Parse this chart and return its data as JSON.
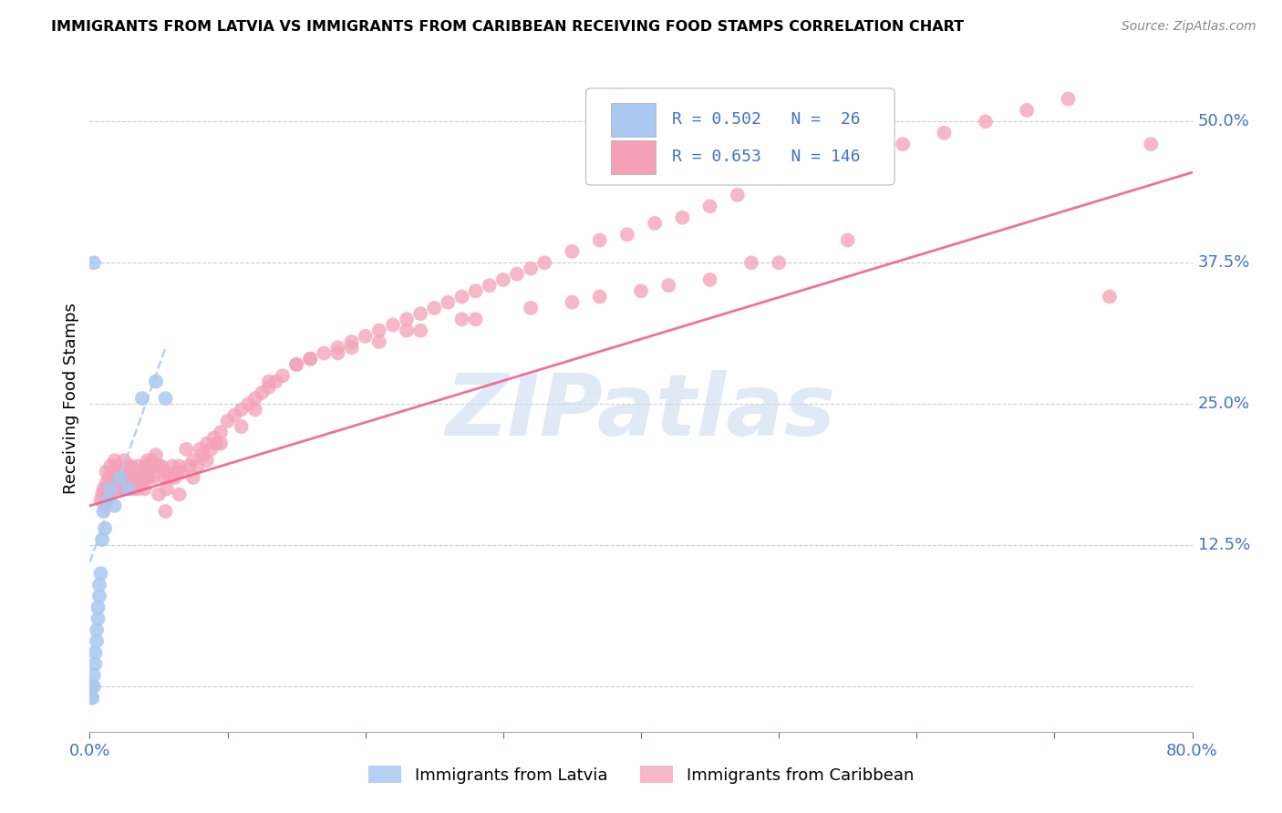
{
  "title": "IMMIGRANTS FROM LATVIA VS IMMIGRANTS FROM CARIBBEAN RECEIVING FOOD STAMPS CORRELATION CHART",
  "source": "Source: ZipAtlas.com",
  "ylabel": "Receiving Food Stamps",
  "xlim": [
    0.0,
    0.8
  ],
  "ylim": [
    -0.04,
    0.55
  ],
  "ytick_vals": [
    0.0,
    0.125,
    0.25,
    0.375,
    0.5
  ],
  "ytick_labels": [
    "",
    "12.5%",
    "25.0%",
    "37.5%",
    "50.0%"
  ],
  "xtick_vals": [
    0.0,
    0.1,
    0.2,
    0.3,
    0.4,
    0.5,
    0.6,
    0.7,
    0.8
  ],
  "xtick_labels": [
    "0.0%",
    "",
    "",
    "",
    "",
    "",
    "",
    "",
    "80.0%"
  ],
  "latvia_color": "#a8c8f0",
  "caribbean_color": "#f4a0b8",
  "latvia_line_color": "#8ab0e0",
  "caribbean_line_color": "#f06090",
  "axis_label_color": "#4472c4",
  "watermark": "ZIPatlas",
  "watermark_color": "#c8d8f0",
  "latvia_R": 0.502,
  "latvia_N": 26,
  "caribbean_R": 0.653,
  "caribbean_N": 146,
  "lv_x": [
    0.001,
    0.002,
    0.002,
    0.003,
    0.003,
    0.004,
    0.004,
    0.005,
    0.005,
    0.006,
    0.006,
    0.007,
    0.007,
    0.008,
    0.009,
    0.01,
    0.011,
    0.013,
    0.015,
    0.018,
    0.022,
    0.028,
    0.038,
    0.048,
    0.055,
    0.003
  ],
  "lv_y": [
    -0.01,
    -0.01,
    0.0,
    0.0,
    0.01,
    0.02,
    0.03,
    0.04,
    0.05,
    0.06,
    0.07,
    0.08,
    0.09,
    0.1,
    0.13,
    0.155,
    0.14,
    0.165,
    0.175,
    0.16,
    0.185,
    0.175,
    0.255,
    0.27,
    0.255,
    0.375
  ],
  "car_x": [
    0.008,
    0.009,
    0.01,
    0.011,
    0.012,
    0.012,
    0.013,
    0.013,
    0.014,
    0.015,
    0.015,
    0.016,
    0.017,
    0.018,
    0.018,
    0.019,
    0.02,
    0.02,
    0.021,
    0.022,
    0.022,
    0.023,
    0.024,
    0.025,
    0.025,
    0.026,
    0.027,
    0.028,
    0.028,
    0.029,
    0.03,
    0.03,
    0.031,
    0.032,
    0.033,
    0.034,
    0.035,
    0.035,
    0.036,
    0.037,
    0.038,
    0.039,
    0.04,
    0.04,
    0.041,
    0.042,
    0.043,
    0.044,
    0.045,
    0.046,
    0.047,
    0.048,
    0.05,
    0.05,
    0.052,
    0.054,
    0.055,
    0.056,
    0.058,
    0.06,
    0.062,
    0.064,
    0.065,
    0.067,
    0.07,
    0.072,
    0.075,
    0.078,
    0.08,
    0.082,
    0.085,
    0.088,
    0.09,
    0.092,
    0.095,
    0.1,
    0.105,
    0.11,
    0.115,
    0.12,
    0.125,
    0.13,
    0.135,
    0.14,
    0.15,
    0.16,
    0.17,
    0.18,
    0.19,
    0.2,
    0.21,
    0.22,
    0.23,
    0.24,
    0.25,
    0.26,
    0.27,
    0.28,
    0.29,
    0.3,
    0.31,
    0.32,
    0.33,
    0.35,
    0.37,
    0.39,
    0.41,
    0.43,
    0.45,
    0.47,
    0.5,
    0.53,
    0.56,
    0.59,
    0.62,
    0.65,
    0.68,
    0.71,
    0.74,
    0.77,
    0.12,
    0.15,
    0.18,
    0.21,
    0.24,
    0.28,
    0.35,
    0.4,
    0.45,
    0.5,
    0.055,
    0.065,
    0.075,
    0.085,
    0.095,
    0.11,
    0.13,
    0.16,
    0.19,
    0.23,
    0.27,
    0.32,
    0.37,
    0.42,
    0.48,
    0.55
  ],
  "car_y": [
    0.165,
    0.17,
    0.175,
    0.16,
    0.18,
    0.19,
    0.165,
    0.175,
    0.185,
    0.17,
    0.195,
    0.18,
    0.175,
    0.19,
    0.2,
    0.185,
    0.18,
    0.195,
    0.175,
    0.19,
    0.18,
    0.175,
    0.19,
    0.185,
    0.2,
    0.175,
    0.185,
    0.195,
    0.175,
    0.185,
    0.175,
    0.195,
    0.18,
    0.175,
    0.18,
    0.185,
    0.175,
    0.195,
    0.185,
    0.18,
    0.185,
    0.19,
    0.195,
    0.175,
    0.185,
    0.2,
    0.185,
    0.195,
    0.2,
    0.185,
    0.195,
    0.205,
    0.195,
    0.17,
    0.195,
    0.185,
    0.19,
    0.175,
    0.185,
    0.195,
    0.185,
    0.19,
    0.195,
    0.19,
    0.21,
    0.195,
    0.2,
    0.195,
    0.21,
    0.205,
    0.215,
    0.21,
    0.22,
    0.215,
    0.225,
    0.235,
    0.24,
    0.245,
    0.25,
    0.255,
    0.26,
    0.265,
    0.27,
    0.275,
    0.285,
    0.29,
    0.295,
    0.3,
    0.305,
    0.31,
    0.315,
    0.32,
    0.325,
    0.33,
    0.335,
    0.34,
    0.345,
    0.35,
    0.355,
    0.36,
    0.365,
    0.37,
    0.375,
    0.385,
    0.395,
    0.4,
    0.41,
    0.415,
    0.425,
    0.435,
    0.45,
    0.46,
    0.47,
    0.48,
    0.49,
    0.5,
    0.51,
    0.52,
    0.345,
    0.48,
    0.245,
    0.285,
    0.295,
    0.305,
    0.315,
    0.325,
    0.34,
    0.35,
    0.36,
    0.375,
    0.155,
    0.17,
    0.185,
    0.2,
    0.215,
    0.23,
    0.27,
    0.29,
    0.3,
    0.315,
    0.325,
    0.335,
    0.345,
    0.355,
    0.375,
    0.395
  ],
  "lv_line_x": [
    0.0,
    0.055
  ],
  "lv_line_y_start": 0.11,
  "lv_line_y_end": 0.3,
  "car_line_x": [
    0.0,
    0.8
  ],
  "car_line_y_start": 0.16,
  "car_line_y_end": 0.455
}
